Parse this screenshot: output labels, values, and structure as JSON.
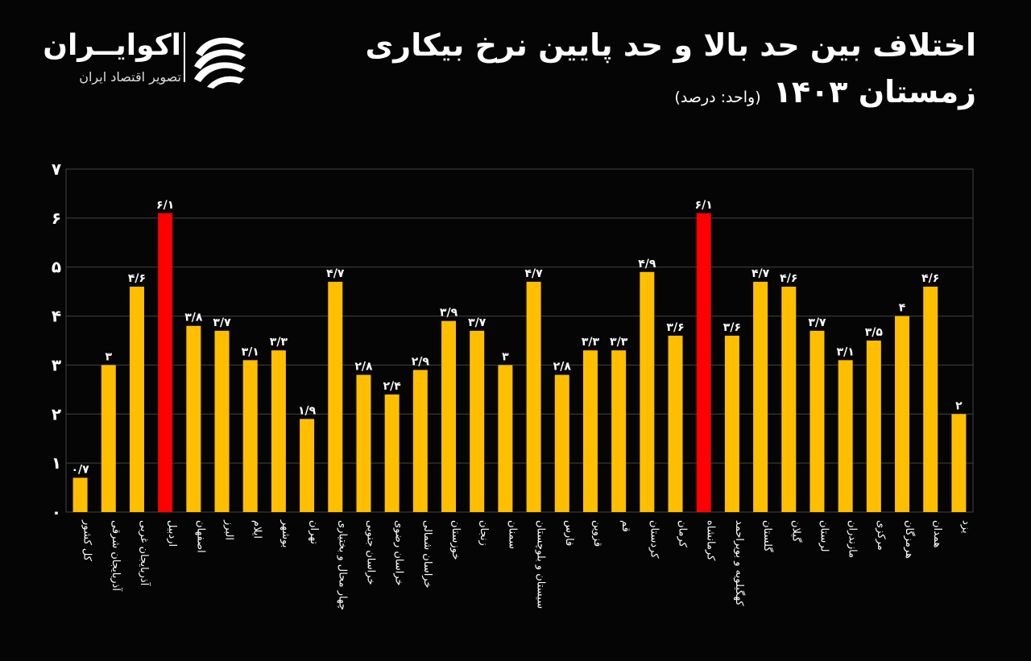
{
  "header": {
    "title": "اختلاف بین حد بالا و حد پایین نرخ بیکاری",
    "subtitle": "زمستان ۱۴۰۳",
    "unit": "(واحد: درصد)"
  },
  "logo": {
    "name": "اکوایــران",
    "tagline": "تصویر اقتصاد ایران",
    "icon": "ecoiran-logo-icon"
  },
  "colors": {
    "background": "#050505",
    "bar": "#ffbf00",
    "highlight": "#ff0000",
    "grid": "#444444",
    "text": "#ffffff"
  },
  "chart_data": {
    "type": "bar",
    "title": "اختلاف بین حد بالا و حد پایین نرخ بیکاری",
    "xlabel": "",
    "ylabel": "",
    "ylim": [
      0,
      7
    ],
    "yticks": [
      {
        "value": 0,
        "label": "۰"
      },
      {
        "value": 1,
        "label": "۱"
      },
      {
        "value": 2,
        "label": "۲"
      },
      {
        "value": 3,
        "label": "۳"
      },
      {
        "value": 4,
        "label": "۴"
      },
      {
        "value": 5,
        "label": "۵"
      },
      {
        "value": 6,
        "label": "۶"
      },
      {
        "value": 7,
        "label": "۷"
      }
    ],
    "grid": true,
    "categories": [
      "کل کشور",
      "آذربایجان شرقی",
      "آذربایجان غربی",
      "اردبیل",
      "اصفهان",
      "البرز",
      "ایلام",
      "بوشهر",
      "تهران",
      "چهار محال و بختیاری",
      "خراسان جنوبی",
      "خراسان رضوی",
      "خراسان شمالی",
      "خوزستان",
      "زنجان",
      "سمنان",
      "سیستان و بلوچستان",
      "فارس",
      "قزوین",
      "قم",
      "کردستان",
      "کرمان",
      "کرمانشاه",
      "کهگیلویه و بویراحمد",
      "گلستان",
      "گیلان",
      "لرستان",
      "مازندران",
      "مرکزی",
      "هرمزگان",
      "همدان",
      "یزد"
    ],
    "values": [
      0.7,
      3,
      4.6,
      6.1,
      3.8,
      3.7,
      3.1,
      3.3,
      1.9,
      4.7,
      2.8,
      2.4,
      2.9,
      3.9,
      3.7,
      3,
      4.7,
      2.8,
      3.3,
      3.3,
      4.9,
      3.6,
      6.1,
      3.6,
      4.7,
      4.6,
      3.7,
      3.1,
      3.5,
      4,
      4.6,
      2
    ],
    "value_labels": [
      "۰/۷",
      "۳",
      "۴/۶",
      "۶/۱",
      "۳/۸",
      "۳/۷",
      "۳/۱",
      "۳/۳",
      "۱/۹",
      "۴/۷",
      "۲/۸",
      "۲/۴",
      "۲/۹",
      "۳/۹",
      "۳/۷",
      "۳",
      "۴/۷",
      "۲/۸",
      "۳/۳",
      "۳/۳",
      "۴/۹",
      "۳/۶",
      "۶/۱",
      "۳/۶",
      "۴/۷",
      "۴/۶",
      "۳/۷",
      "۳/۱",
      "۳/۵",
      "۴",
      "۴/۶",
      "۲"
    ],
    "highlighted": [
      "اردبیل",
      "کرمانشاه"
    ]
  }
}
